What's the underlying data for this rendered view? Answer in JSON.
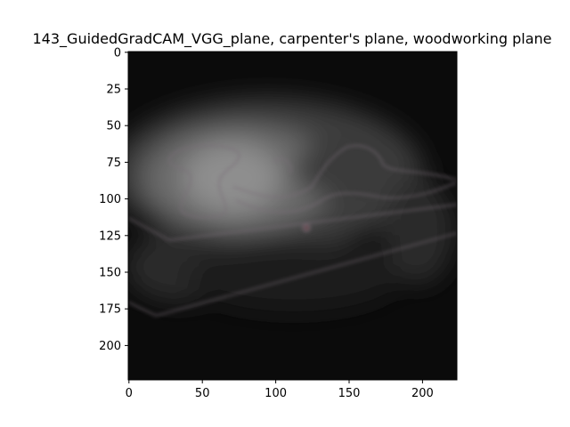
{
  "figure": {
    "title": "143_GuidedGradCAM_VGG_plane, carpenter's plane, woodworking plane"
  },
  "image": {
    "description_icon": "grayscale-saliency-heatmap",
    "x_ticks": [
      "0",
      "50",
      "100",
      "150",
      "200"
    ],
    "y_ticks": [
      "0",
      "25",
      "50",
      "75",
      "100",
      "125",
      "150",
      "175",
      "200"
    ],
    "x_range": [
      0,
      224
    ],
    "y_range": [
      0,
      224
    ]
  }
}
